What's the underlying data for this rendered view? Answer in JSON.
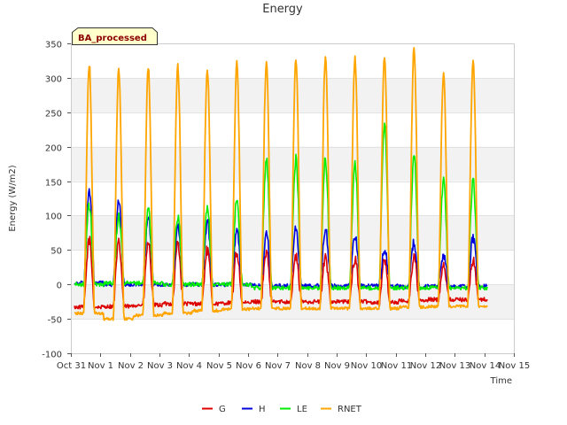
{
  "chart_data": {
    "type": "line",
    "title": "Energy",
    "xlabel": "Time",
    "ylabel": "Energy (W/m2)",
    "ylim": [
      -100,
      350
    ],
    "yticks": [
      -100,
      -50,
      0,
      50,
      100,
      150,
      200,
      250,
      300,
      350
    ],
    "xlim": [
      0,
      15
    ],
    "xticks": [
      {
        "value": 0,
        "label": "Oct 31"
      },
      {
        "value": 1,
        "label": "Nov 1"
      },
      {
        "value": 2,
        "label": "Nov 2"
      },
      {
        "value": 3,
        "label": "Nov 3"
      },
      {
        "value": 4,
        "label": "Nov 4"
      },
      {
        "value": 5,
        "label": "Nov 5"
      },
      {
        "value": 6,
        "label": "Nov 6"
      },
      {
        "value": 7,
        "label": "Nov 7"
      },
      {
        "value": 8,
        "label": "Nov 8"
      },
      {
        "value": 9,
        "label": "Nov 9"
      },
      {
        "value": 10,
        "label": "Nov 10"
      },
      {
        "value": 11,
        "label": "Nov 11"
      },
      {
        "value": 12,
        "label": "Nov 12"
      },
      {
        "value": 13,
        "label": "Nov 13"
      },
      {
        "value": 14,
        "label": "Nov 14"
      },
      {
        "value": 15,
        "label": "Nov 15"
      }
    ],
    "badge": "BA_processed",
    "series": [
      {
        "name": "G",
        "color": "#dd0000",
        "night": [
          -33,
          -32,
          -30,
          -28,
          -28,
          -27,
          -25,
          -25,
          -25,
          -25,
          -26,
          -24,
          -22,
          -22
        ],
        "peak": [
          65,
          60,
          60,
          60,
          50,
          47,
          45,
          40,
          38,
          38,
          35,
          40,
          30,
          35
        ]
      },
      {
        "name": "H",
        "color": "#0000dd",
        "night": [
          2,
          0,
          0,
          0,
          0,
          0,
          -2,
          -2,
          -2,
          -2,
          -2,
          -3,
          -3,
          -3
        ],
        "peak": [
          135,
          120,
          98,
          87,
          90,
          80,
          72,
          82,
          80,
          72,
          52,
          60,
          42,
          68
        ]
      },
      {
        "name": "LE",
        "color": "#00ee00",
        "night": [
          0,
          2,
          2,
          0,
          0,
          0,
          -5,
          -5,
          -5,
          -5,
          -5,
          -5,
          -5,
          -5
        ],
        "peak": [
          115,
          100,
          110,
          100,
          110,
          125,
          183,
          182,
          182,
          178,
          230,
          190,
          150,
          150
        ]
      },
      {
        "name": "RNET",
        "color": "#ffa500",
        "night": [
          -42,
          -50,
          -45,
          -42,
          -38,
          -36,
          -35,
          -35,
          -35,
          -35,
          -35,
          -33,
          -32,
          -32
        ],
        "peak": [
          320,
          312,
          316,
          316,
          313,
          321,
          323,
          325,
          330,
          329,
          330,
          343,
          308,
          322
        ]
      }
    ]
  }
}
